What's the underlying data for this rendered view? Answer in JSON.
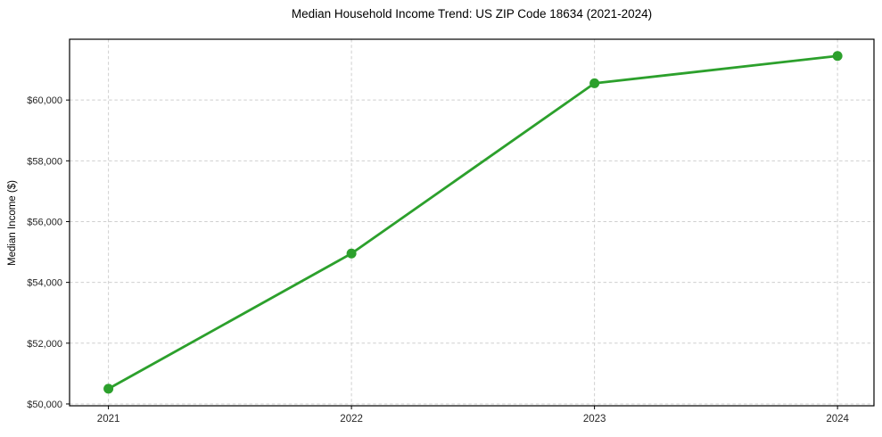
{
  "figure": {
    "background": "#ffffff"
  },
  "chart_data": {
    "type": "line",
    "title": "Median Household Income Trend: US ZIP Code 18634 (2021-2024)",
    "xlabel": "",
    "ylabel": "Median Income ($)",
    "x": [
      2021,
      2022,
      2023,
      2024
    ],
    "series": [
      {
        "name": "Median Household Income",
        "values": [
          50500,
          54950,
          60550,
          61450
        ],
        "color": "#2ca02c",
        "marker": "circle",
        "marker_radius": 5.5,
        "line_width": 2.8
      }
    ],
    "xlim": [
      2020.84,
      2024.15
    ],
    "ylim": [
      49940,
      62000
    ],
    "xticks": [
      {
        "value": 2021,
        "label": "2021"
      },
      {
        "value": 2022,
        "label": "2022"
      },
      {
        "value": 2023,
        "label": "2023"
      },
      {
        "value": 2024,
        "label": "2024"
      }
    ],
    "yticks": [
      {
        "value": 50000,
        "label": "$50,000"
      },
      {
        "value": 52000,
        "label": "$52,000"
      },
      {
        "value": 54000,
        "label": "$54,000"
      },
      {
        "value": 56000,
        "label": "$56,000"
      },
      {
        "value": 58000,
        "label": "$58,000"
      },
      {
        "value": 60000,
        "label": "$60,000"
      }
    ],
    "grid": {
      "show": true,
      "style": "dashed",
      "color": "#cfcfcf",
      "dash": "3.5 2.8"
    },
    "legend": {
      "show": false
    },
    "plot_background": "#ffffff",
    "spine_color": "#000000",
    "tick_color": "#000000",
    "tick_label_color": "#262626"
  }
}
